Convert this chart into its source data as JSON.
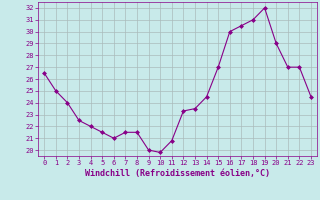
{
  "x": [
    0,
    1,
    2,
    3,
    4,
    5,
    6,
    7,
    8,
    9,
    10,
    11,
    12,
    13,
    14,
    15,
    16,
    17,
    18,
    19,
    20,
    21,
    22,
    23
  ],
  "y": [
    26.5,
    25.0,
    24.0,
    22.5,
    22.0,
    21.5,
    21.0,
    21.5,
    21.5,
    20.0,
    19.8,
    20.8,
    23.3,
    23.5,
    24.5,
    27.0,
    30.0,
    30.5,
    31.0,
    32.0,
    29.0,
    27.0,
    27.0,
    24.5
  ],
  "line_color": "#880088",
  "marker": "D",
  "markersize": 2.0,
  "bg_color": "#c8eaea",
  "grid_color": "#aabbbb",
  "xlabel": "Windchill (Refroidissement éolien,°C)",
  "ylim": [
    19.5,
    32.5
  ],
  "xlim": [
    -0.5,
    23.5
  ],
  "yticks": [
    20,
    21,
    22,
    23,
    24,
    25,
    26,
    27,
    28,
    29,
    30,
    31,
    32
  ],
  "xticks": [
    0,
    1,
    2,
    3,
    4,
    5,
    6,
    7,
    8,
    9,
    10,
    11,
    12,
    13,
    14,
    15,
    16,
    17,
    18,
    19,
    20,
    21,
    22,
    23
  ],
  "tick_color": "#880088",
  "label_color": "#880088",
  "tick_fontsize": 5.0,
  "xlabel_fontsize": 6.0
}
